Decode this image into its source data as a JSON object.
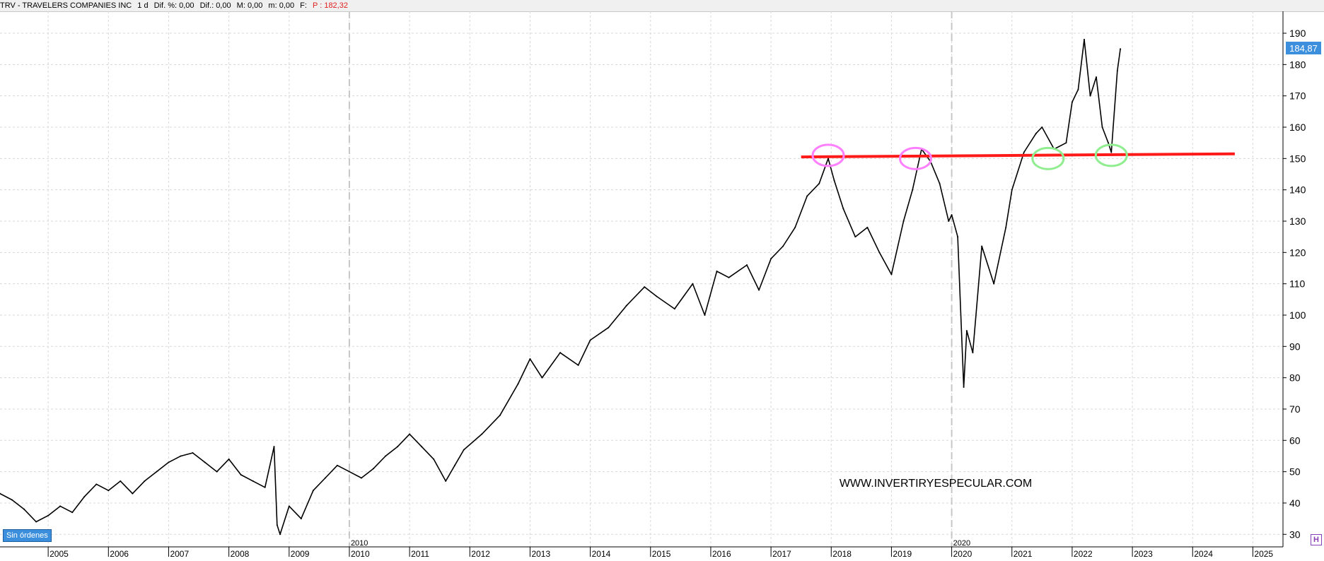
{
  "header": {
    "ticker": "TRV - TRAVELERS COMPANIES INC",
    "timeframe": "1 d",
    "dif_pct": "Dif. %: 0,00",
    "dif": "Dif.: 0,00",
    "m": "M: 0,00",
    "m_small": "m: 0,00",
    "f": "F:",
    "p": "P : 182,32"
  },
  "status_badge": "Sin órdenes",
  "watermark": "WWW.INVERTIRYESPECULAR.COM",
  "last_price_label": "184,87",
  "h_icon_label": "H",
  "colors": {
    "price_line": "#000000",
    "resistance_line": "#ff1a1a",
    "top_circles": "#ff80ff",
    "bottom_circles": "#90ee90",
    "grid": "#d8d8d8",
    "price_tag_bg": "#3b8fdc"
  },
  "chart_data": {
    "type": "line",
    "title": "",
    "xlabel": "",
    "ylabel": "",
    "ylim": [
      26,
      197
    ],
    "xlim": [
      2004.2,
      2025.5
    ],
    "grid": true,
    "y_ticks": [
      30,
      40,
      50,
      60,
      70,
      80,
      90,
      100,
      110,
      120,
      130,
      140,
      150,
      160,
      170,
      180,
      190
    ],
    "x_ticks": [
      "2005",
      "2006",
      "2007",
      "2008",
      "2009",
      "2010",
      "2011",
      "2012",
      "2013",
      "2014",
      "2015",
      "2016",
      "2017",
      "2018",
      "2019",
      "2020",
      "2021",
      "2022",
      "2023",
      "2024",
      "2025"
    ],
    "x_tick_values": [
      2005,
      2006,
      2007,
      2008,
      2009,
      2010,
      2011,
      2012,
      2013,
      2014,
      2015,
      2016,
      2017,
      2018,
      2019,
      2020,
      2021,
      2022,
      2023,
      2024,
      2025
    ],
    "decade_markers": [
      {
        "label": "2010",
        "x": 2010.0
      },
      {
        "label": "2020",
        "x": 2020.0
      }
    ],
    "series": [
      {
        "x": [
          2004.2,
          2004.4,
          2004.6,
          2004.8,
          2005.0,
          2005.2,
          2005.4,
          2005.6,
          2005.8,
          2006.0,
          2006.2,
          2006.4,
          2006.6,
          2006.8,
          2007.0,
          2007.2,
          2007.4,
          2007.6,
          2007.8,
          2008.0,
          2008.2,
          2008.4,
          2008.6,
          2008.75,
          2008.8,
          2008.85,
          2009.0,
          2009.2,
          2009.4,
          2009.6,
          2009.8,
          2010.0,
          2010.2,
          2010.4,
          2010.6,
          2010.8,
          2011.0,
          2011.2,
          2011.4,
          2011.6,
          2011.75,
          2011.9,
          2012.2,
          2012.5,
          2012.8,
          2013.0,
          2013.2,
          2013.5,
          2013.8,
          2014.0,
          2014.3,
          2014.6,
          2014.9,
          2015.1,
          2015.4,
          2015.7,
          2015.9,
          2016.1,
          2016.3,
          2016.6,
          2016.8,
          2017.0,
          2017.2,
          2017.4,
          2017.6,
          2017.8,
          2017.95,
          2018.05,
          2018.2,
          2018.4,
          2018.6,
          2018.8,
          2019.0,
          2019.2,
          2019.35,
          2019.5,
          2019.65,
          2019.8,
          2019.95,
          2020.0,
          2020.1,
          2020.2,
          2020.25,
          2020.35,
          2020.5,
          2020.7,
          2020.9,
          2021.0,
          2021.2,
          2021.4,
          2021.5,
          2021.7,
          2021.9,
          2022.0,
          2022.1,
          2022.2,
          2022.3,
          2022.4,
          2022.5,
          2022.6,
          2022.65,
          2022.75,
          2022.8
        ],
        "y": [
          43,
          41,
          38,
          34,
          36,
          39,
          37,
          42,
          46,
          44,
          47,
          43,
          47,
          50,
          53,
          55,
          56,
          53,
          50,
          54,
          49,
          47,
          45,
          58,
          33,
          30,
          39,
          35,
          44,
          48,
          52,
          50,
          48,
          51,
          55,
          58,
          62,
          58,
          54,
          47,
          52,
          57,
          62,
          68,
          78,
          86,
          80,
          88,
          84,
          92,
          96,
          103,
          109,
          106,
          102,
          110,
          100,
          114,
          112,
          116,
          108,
          118,
          122,
          128,
          138,
          142,
          150,
          143,
          134,
          125,
          128,
          120,
          113,
          130,
          140,
          153,
          149,
          142,
          130,
          132,
          125,
          77,
          95,
          88,
          122,
          110,
          128,
          140,
          152,
          158,
          160,
          153,
          155,
          168,
          172,
          188,
          170,
          176,
          160,
          155,
          152,
          178,
          185
        ]
      }
    ],
    "annotations": [
      {
        "type": "hline",
        "x0": 2017.5,
        "x1": 2024.7,
        "y0": 150.5,
        "y1": 151.5
      },
      {
        "type": "ellipse",
        "x": 2017.95,
        "y": 151,
        "group": "top"
      },
      {
        "type": "ellipse",
        "x": 2019.4,
        "y": 150,
        "group": "top"
      },
      {
        "type": "ellipse",
        "x": 2021.6,
        "y": 150,
        "group": "bottom"
      },
      {
        "type": "ellipse",
        "x": 2022.65,
        "y": 151,
        "group": "bottom"
      }
    ]
  }
}
